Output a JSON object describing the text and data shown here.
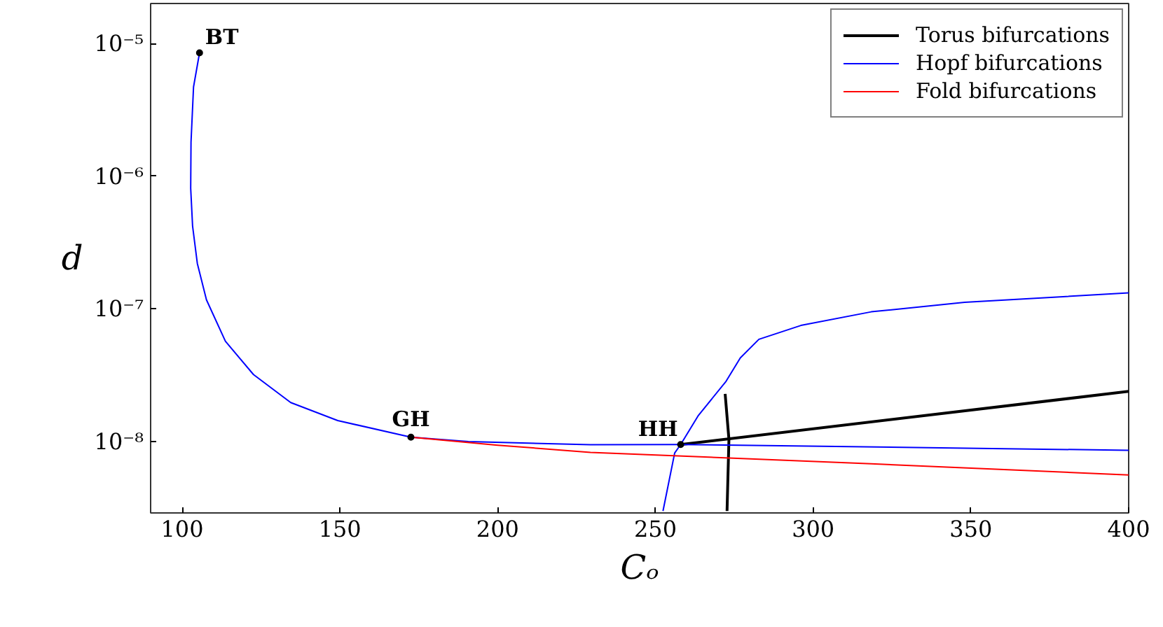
{
  "chart_data": {
    "type": "line",
    "xlabel": "Cₒ",
    "ylabel": "d",
    "log": "y",
    "grid": false,
    "legend": "top right",
    "xlim": [
      90,
      400
    ],
    "xticks": [
      100,
      150,
      200,
      250,
      300,
      350,
      400
    ],
    "ylim": [
      2.9e-09,
      2e-05
    ],
    "yticks": [
      {
        "value": 1e-08,
        "label": "10⁻⁸"
      },
      {
        "value": 1e-07,
        "label": "10⁻⁷"
      },
      {
        "value": 1e-06,
        "label": "10⁻⁶"
      },
      {
        "value": 1e-05,
        "label": "10⁻⁵"
      }
    ],
    "series": [
      {
        "name": "Torus bifurcations",
        "color": "#000000",
        "x": [
          258,
          400
        ],
        "values": [
          9.5e-09,
          2.39e-08
        ]
      },
      {
        "color": "#000000",
        "x": [
          272.1,
          273.3,
          272.7
        ],
        "values": [
          2.29e-08,
          1.04e-08,
          3e-09
        ]
      },
      {
        "name": "Hopf bifurcations",
        "color": "#0000ff",
        "x": [
          105.5,
          103.6,
          102.8,
          102.7,
          103.3,
          104.8,
          107.7,
          113.7,
          122.6,
          134.4,
          149.3,
          172.5,
          190.7,
          229.4,
          258,
          400
        ],
        "values": [
          8.5e-06,
          4.7e-06,
          1.8e-06,
          8.1e-07,
          4.2e-07,
          2.2e-07,
          1.17e-07,
          5.7e-08,
          3.2e-08,
          1.97e-08,
          1.44e-08,
          1.08e-08,
          1e-08,
          9.46e-09,
          9.5e-09,
          8.6e-09
        ]
      },
      {
        "color": "#0000ff",
        "x": [
          252.4,
          256.1,
          258,
          263.5,
          272.4,
          276.9,
          282.8,
          296.1,
          318.4,
          348,
          400
        ],
        "values": [
          3e-09,
          8.2e-09,
          9.5e-09,
          1.56e-08,
          2.85e-08,
          4.27e-08,
          5.9e-08,
          7.5e-08,
          9.5e-08,
          1.12e-07,
          1.32e-07
        ]
      },
      {
        "name": "Fold bifurcations",
        "color": "#ff0000",
        "x": [
          172.5,
          200,
          229.4,
          318.4,
          400
        ],
        "values": [
          1.08e-08,
          9.4e-09,
          8.3e-09,
          6.8e-09,
          5.6e-09
        ]
      },
      {
        "type": "scatter",
        "marker": "circle",
        "color": "#000000",
        "x": [
          105.5,
          172.5,
          258
        ],
        "values": [
          8.5e-06,
          1.08e-08,
          9.5e-09
        ]
      }
    ],
    "annotations": [
      {
        "text": "BT",
        "x": 105.5,
        "y": 8.5e-06
      },
      {
        "text": "GH",
        "x": 172.5,
        "y": 1.08e-08
      },
      {
        "text": "HH",
        "x": 258,
        "y": 9.5e-09
      }
    ]
  }
}
